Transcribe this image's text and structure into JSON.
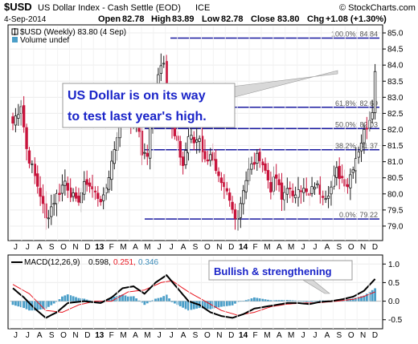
{
  "header": {
    "symbol": "$USD",
    "name": "US Dollar Index - Cash Settle (EOD)",
    "exchange": "ICE",
    "watermark": "© StockCharts.com",
    "date": "4-Sep-2014",
    "open_label": "Open",
    "open": "82.78",
    "high_label": "High",
    "high": "83.89",
    "low_label": "Low",
    "low": "82.78",
    "close_label": "Close",
    "close": "83.80",
    "chg_label": "Chg",
    "chg": "+1.08 (+1.30%)",
    "legend_price": "$USD (Weekly) 83.80 (4 Sep)",
    "legend_volume": "Volume undef",
    "macd_legend_prefix": "MACD(12,26,9)",
    "macd_value": "0.598,",
    "signal_value": "0.251,",
    "hist_value": "0.346"
  },
  "annotations": {
    "callout_line1": "US Dollar is on its way",
    "callout_line2": "to test last year's high.",
    "macd_callout": "Bullish & strengthening"
  },
  "colors": {
    "up": "#1e1e1e",
    "down": "#c8143c",
    "fib": "#1a1aa0",
    "macd": "#000000",
    "signal": "#e8141e",
    "histogram": "#4a9ec8",
    "callout_text": "#1a24c8"
  },
  "chart_data": [
    {
      "type": "candlestick",
      "ylim": [
        78.6,
        85.2
      ],
      "yticks": [
        "79.0",
        "79.5",
        "80.0",
        "80.5",
        "81.0",
        "81.5",
        "82.0",
        "82.5",
        "83.0",
        "83.5",
        "84.0",
        "84.5",
        "85.0"
      ],
      "x_labels": [
        "J",
        "J",
        "A",
        "S",
        "O",
        "N",
        "D",
        "13",
        "F",
        "M",
        "A",
        "M",
        "J",
        "J",
        "A",
        "S",
        "O",
        "N",
        "D",
        "14",
        "F",
        "M",
        "A",
        "M",
        "J",
        "J",
        "A",
        "S",
        "O",
        "N",
        "D"
      ],
      "fib_levels": [
        {
          "label": "100.0%: 84.84",
          "value": 84.84
        },
        {
          "label": "61.8%: 82.69",
          "value": 82.69
        },
        {
          "label": "50.0%: 82.03",
          "value": 82.03
        },
        {
          "label": "38.2%: 81.37",
          "value": 81.37
        },
        {
          "label": "0.0%: 79.22",
          "value": 79.22
        }
      ],
      "anchors": [
        [
          0,
          82.2
        ],
        [
          3,
          82.8
        ],
        [
          5,
          81.4
        ],
        [
          7,
          80.8
        ],
        [
          10,
          80.0
        ],
        [
          12,
          79.2
        ],
        [
          15,
          79.8
        ],
        [
          19,
          80.4
        ],
        [
          23,
          79.7
        ],
        [
          27,
          80.4
        ],
        [
          30,
          80.0
        ],
        [
          33,
          79.8
        ],
        [
          36,
          81.0
        ],
        [
          39,
          82.3
        ],
        [
          41,
          82.8
        ],
        [
          43,
          82.1
        ],
        [
          45,
          82.6
        ],
        [
          47,
          81.3
        ],
        [
          49,
          81.2
        ],
        [
          51,
          82.8
        ],
        [
          53,
          83.8
        ],
        [
          55,
          84.2
        ],
        [
          56,
          83.3
        ],
        [
          57,
          82.6
        ],
        [
          58,
          82.0
        ],
        [
          60,
          81.5
        ],
        [
          62,
          80.9
        ],
        [
          64,
          81.8
        ],
        [
          66,
          81.6
        ],
        [
          68,
          81.8
        ],
        [
          70,
          81.0
        ],
        [
          72,
          81.3
        ],
        [
          74,
          80.6
        ],
        [
          76,
          80.2
        ],
        [
          78,
          80.0
        ],
        [
          80,
          79.5
        ],
        [
          82,
          79.3
        ],
        [
          84,
          80.2
        ],
        [
          86,
          80.7
        ],
        [
          88,
          81.0
        ],
        [
          90,
          81.2
        ],
        [
          92,
          80.7
        ],
        [
          94,
          80.2
        ],
        [
          96,
          80.5
        ],
        [
          98,
          79.8
        ],
        [
          100,
          80.3
        ],
        [
          102,
          79.8
        ],
        [
          104,
          80.3
        ],
        [
          106,
          80.1
        ],
        [
          108,
          79.9
        ],
        [
          110,
          80.3
        ],
        [
          112,
          80.1
        ],
        [
          114,
          80.0
        ],
        [
          116,
          80.2
        ],
        [
          118,
          80.7
        ],
        [
          120,
          80.5
        ],
        [
          122,
          80.3
        ],
        [
          124,
          80.9
        ],
        [
          126,
          81.4
        ],
        [
          128,
          81.9
        ],
        [
          130,
          82.4
        ],
        [
          131,
          82.7
        ],
        [
          132,
          83.8
        ]
      ]
    },
    {
      "type": "macd",
      "params": "12,26,9",
      "ylim": [
        -0.7,
        1.2
      ],
      "yticks": [
        "1.0",
        "0.5",
        "0.0",
        "-0.5"
      ],
      "x_labels": [
        "J",
        "J",
        "A",
        "S",
        "O",
        "N",
        "D",
        "13",
        "F",
        "M",
        "A",
        "M",
        "J",
        "J",
        "A",
        "S",
        "O",
        "N",
        "D",
        "14",
        "F",
        "M",
        "A",
        "M",
        "J",
        "J",
        "A",
        "S",
        "O",
        "N",
        "D"
      ],
      "macd_anchors": [
        [
          0,
          0.35
        ],
        [
          4,
          0.1
        ],
        [
          8,
          -0.2
        ],
        [
          12,
          -0.45
        ],
        [
          16,
          -0.3
        ],
        [
          20,
          -0.05
        ],
        [
          26,
          0.0
        ],
        [
          32,
          -0.05
        ],
        [
          36,
          0.1
        ],
        [
          40,
          0.35
        ],
        [
          44,
          0.4
        ],
        [
          48,
          0.2
        ],
        [
          52,
          0.5
        ],
        [
          56,
          0.7
        ],
        [
          60,
          0.35
        ],
        [
          64,
          0.0
        ],
        [
          68,
          -0.1
        ],
        [
          72,
          -0.3
        ],
        [
          76,
          -0.4
        ],
        [
          80,
          -0.45
        ],
        [
          84,
          -0.35
        ],
        [
          88,
          -0.2
        ],
        [
          92,
          -0.15
        ],
        [
          96,
          -0.1
        ],
        [
          100,
          -0.05
        ],
        [
          104,
          -0.05
        ],
        [
          108,
          -0.08
        ],
        [
          112,
          -0.02
        ],
        [
          116,
          0.0
        ],
        [
          120,
          0.05
        ],
        [
          124,
          0.12
        ],
        [
          128,
          0.28
        ],
        [
          132,
          0.598
        ]
      ],
      "signal_anchors": [
        [
          0,
          0.45
        ],
        [
          6,
          0.2
        ],
        [
          12,
          -0.25
        ],
        [
          18,
          -0.3
        ],
        [
          24,
          -0.1
        ],
        [
          30,
          0.0
        ],
        [
          36,
          0.0
        ],
        [
          42,
          0.25
        ],
        [
          48,
          0.3
        ],
        [
          54,
          0.5
        ],
        [
          58,
          0.55
        ],
        [
          64,
          0.25
        ],
        [
          70,
          0.0
        ],
        [
          76,
          -0.25
        ],
        [
          82,
          -0.38
        ],
        [
          88,
          -0.3
        ],
        [
          94,
          -0.15
        ],
        [
          100,
          -0.08
        ],
        [
          106,
          -0.05
        ],
        [
          112,
          -0.04
        ],
        [
          118,
          0.0
        ],
        [
          124,
          0.05
        ],
        [
          128,
          0.13
        ],
        [
          132,
          0.251
        ]
      ]
    }
  ]
}
